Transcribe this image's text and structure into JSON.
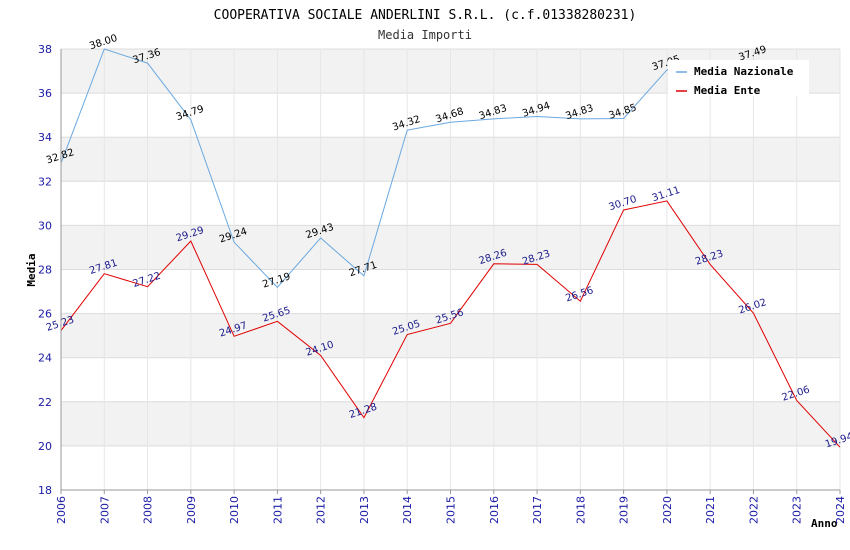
{
  "chart_data": {
    "type": "line",
    "title": "COOPERATIVA SOCIALE ANDERLINI S.R.L. (c.f.01338280231)",
    "subtitle": "Media Importi",
    "xlabel": "Anno",
    "ylabel": "Media",
    "ylim": [
      18,
      38
    ],
    "yticks": [
      "18",
      "20",
      "22",
      "24",
      "26",
      "28",
      "30",
      "32",
      "34",
      "36",
      "38"
    ],
    "categories": [
      "2006",
      "2007",
      "2008",
      "2009",
      "2010",
      "2011",
      "2012",
      "2013",
      "2014",
      "2015",
      "2016",
      "2017",
      "2018",
      "2019",
      "2020",
      "2021",
      "2022",
      "2023",
      "2024"
    ],
    "legend_position": "top-right",
    "series": [
      {
        "name": "Media Nazionale",
        "color": "#6aa8e0",
        "label_color": "#000000",
        "values": [
          32.82,
          38.0,
          37.36,
          34.79,
          29.24,
          27.19,
          29.43,
          27.71,
          34.32,
          34.68,
          34.83,
          34.94,
          34.83,
          34.85,
          37.05,
          null,
          37.49,
          null,
          null
        ],
        "labels": [
          "32.82",
          "38.00",
          "37.36",
          "34.79",
          "29.24",
          "27.19",
          "29.43",
          "27.71",
          "34.32",
          "34.68",
          "34.83",
          "34.94",
          "34.83",
          "34.85",
          "37.05",
          "",
          "37.49",
          "",
          ""
        ]
      },
      {
        "name": "Media Ente",
        "color": "#e00000",
        "label_color": "#1a1a8c",
        "values": [
          25.23,
          27.81,
          27.22,
          29.29,
          24.97,
          25.65,
          24.1,
          21.28,
          25.05,
          25.56,
          28.26,
          28.23,
          26.56,
          30.7,
          31.11,
          28.23,
          26.02,
          22.06,
          19.94
        ],
        "labels": [
          "25.23",
          "27.81",
          "27.22",
          "29.29",
          "24.97",
          "25.65",
          "24.10",
          "21.28",
          "25.05",
          "25.56",
          "28.26",
          "28.23",
          "26.56",
          "30.70",
          "31.11",
          "28.23",
          "26.02",
          "22.06",
          "19.94"
        ]
      }
    ]
  }
}
